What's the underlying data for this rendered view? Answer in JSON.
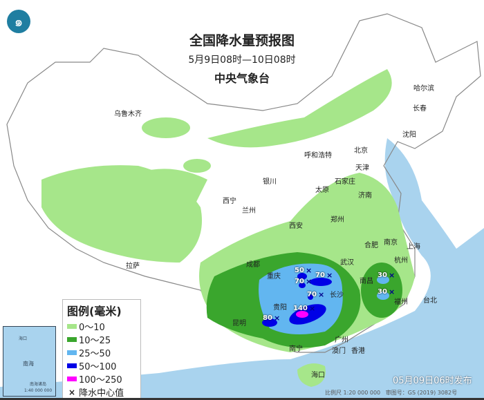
{
  "header": {
    "title": "全国降水量预报图",
    "period": "5月9日08时—10日08时",
    "agency": "中央气象台"
  },
  "cities": [
    "乌鲁木齐",
    "哈尔滨",
    "长春",
    "沈阳",
    "北京",
    "天津",
    "呼和浩特",
    "石家庄",
    "太原",
    "银川",
    "济南",
    "西宁",
    "兰州",
    "郑州",
    "西安",
    "合肥",
    "南京",
    "上海",
    "成都",
    "武汉",
    "杭州",
    "重庆",
    "长沙",
    "南昌",
    "福州",
    "拉萨",
    "贵阳",
    "昆明",
    "台北",
    "南宁",
    "广州",
    "香港",
    "澳门",
    "海口"
  ],
  "rain_centers": [
    "50",
    "70",
    "70",
    "70",
    "140",
    "80",
    "30",
    "30"
  ],
  "legend": {
    "title": "图例(毫米)",
    "items": [
      {
        "label": "0～10",
        "color": "#a6e68a"
      },
      {
        "label": "10～25",
        "color": "#3aa62d"
      },
      {
        "label": "25～50",
        "color": "#62b6f0"
      },
      {
        "label": "50～100",
        "color": "#0000e6"
      },
      {
        "label": "100～250",
        "color": "#ff00ff"
      },
      {
        "label": "降水中心值",
        "symbol": "×"
      }
    ]
  },
  "inset": {
    "label_island": "海口",
    "label_sea": "南海",
    "label_islands": "南海诸岛",
    "scale": "1:40 000 000"
  },
  "footer": {
    "issued": "05月09日06时发布",
    "scale": "比例尺 1:20 000 000",
    "map_no": "审图号：GS (2019) 3082号"
  },
  "colors": {
    "sea": "#a9d3ee",
    "land": "#ffffff",
    "border": "#888888"
  }
}
